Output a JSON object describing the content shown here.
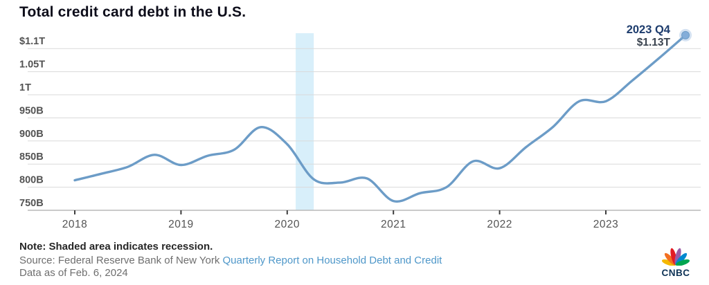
{
  "page_title": "Total credit card debt in the U.S.",
  "chart_data": {
    "type": "line",
    "title": "Total credit card debt in the U.S.",
    "unit": "billions of USD",
    "categories": [
      "2018 Q1",
      "2018 Q2",
      "2018 Q3",
      "2018 Q4",
      "2019 Q1",
      "2019 Q2",
      "2019 Q3",
      "2019 Q4",
      "2020 Q1",
      "2020 Q2",
      "2020 Q3",
      "2020 Q4",
      "2021 Q1",
      "2021 Q2",
      "2021 Q3",
      "2021 Q4",
      "2022 Q1",
      "2022 Q2",
      "2022 Q3",
      "2022 Q4",
      "2023 Q1",
      "2023 Q2",
      "2023 Q3",
      "2023 Q4"
    ],
    "series": [
      {
        "name": "Total credit card debt",
        "values": [
          815,
          829,
          844,
          870,
          848,
          868,
          881,
          930,
          893,
          817,
          810,
          819,
          770,
          787,
          800,
          856,
          841,
          887,
          930,
          986,
          986,
          1031,
          1079,
          1129
        ]
      }
    ],
    "ylim": [
      750,
      1130
    ],
    "y_ticks": [
      {
        "label": "$1.1T",
        "value": 1100
      },
      {
        "label": "1.05T",
        "value": 1050
      },
      {
        "label": "1T",
        "value": 1000
      },
      {
        "label": "950B",
        "value": 950
      },
      {
        "label": "900B",
        "value": 900
      },
      {
        "label": "850B",
        "value": 850
      },
      {
        "label": "800B",
        "value": 800
      },
      {
        "label": "750B",
        "value": 750
      }
    ],
    "x_ticks": [
      "2018",
      "2019",
      "2020",
      "2021",
      "2022",
      "2023"
    ],
    "recession": {
      "start": 2020.08,
      "end": 2020.25,
      "meaning": "recession (shaded area)"
    },
    "annotation": {
      "label": "2023 Q4",
      "value": "$1.13T"
    },
    "grid": "horizontal",
    "legend": "none",
    "colors": {
      "line": "#6c9cc7",
      "dot": "#83add9",
      "dot_halo": "rgba(131,173,217,0.35)",
      "gridline": "#dadada",
      "axis_line": "#b9b9b9",
      "tick": "#3d3d3d",
      "axis_label": "#535353",
      "recession_band": "#d8effa",
      "annotation_label": "#1d3c6d",
      "annotation_value": "#39424e"
    }
  },
  "footer": {
    "note": "Note: Shaded area indicates recession.",
    "source_prefix": "Source: Federal Reserve Bank of New York ",
    "source_link": "Quarterly Report on Household Debt and Credit",
    "data_asof": "Data as of Feb. 6, 2024",
    "cnbc_label": "CNBC",
    "peacock_colors": [
      "#f5b800",
      "#f37021",
      "#e31b23",
      "#9b5ba5",
      "#0089cf",
      "#00a550"
    ]
  }
}
